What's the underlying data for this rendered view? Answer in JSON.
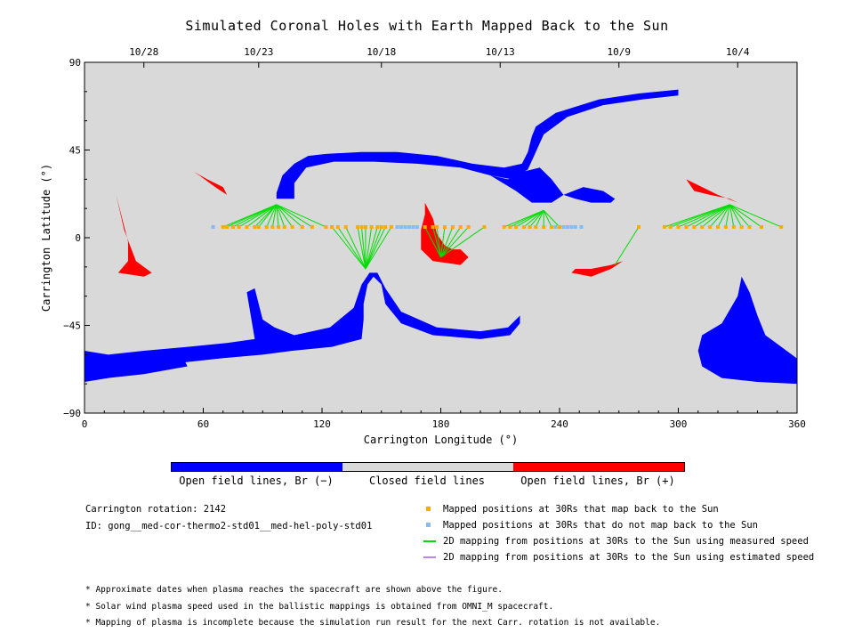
{
  "chart_data": {
    "type": "scatter",
    "title": "Simulated Coronal Holes with Earth Mapped Back to the Sun",
    "xlabel": "Carrington Longitude (°)",
    "ylabel": "Carrington Latitude (°)",
    "xlim": [
      0,
      360
    ],
    "ylim": [
      -90,
      90
    ],
    "xticks": [
      0,
      60,
      120,
      180,
      240,
      300,
      360
    ],
    "yticks": [
      -90,
      -45,
      0,
      45,
      90
    ],
    "xtick_labels": [
      "0",
      "60",
      "120",
      "180",
      "240",
      "300",
      "360"
    ],
    "ytick_labels": [
      "−90",
      "−45",
      "0",
      "45",
      "90"
    ],
    "top_axis": {
      "labels": [
        "10/28",
        "10/23",
        "10/18",
        "10/13",
        "10/9",
        "10/4"
      ],
      "lon": [
        30,
        88,
        150,
        210,
        270,
        330
      ]
    },
    "colors": {
      "open_neg": "#0000ff",
      "open_pos": "#ff0000",
      "closed": "#d9d9d9",
      "mapped": "#ffaa00",
      "unmapped": "#88bbf0",
      "measured": "#00dd00",
      "estimated": "#bb88ee"
    },
    "mapped_lon": [
      70,
      72,
      75,
      78,
      82,
      86,
      88,
      92,
      95,
      98,
      101,
      105,
      110,
      115,
      122,
      125,
      128,
      132,
      138,
      140,
      142,
      145,
      148,
      150,
      152,
      155,
      172,
      176,
      178,
      182,
      186,
      190,
      194,
      202,
      212,
      215,
      218,
      222,
      225,
      228,
      232,
      236,
      240,
      280,
      293,
      296,
      300,
      304,
      308,
      312,
      316,
      320,
      324,
      328,
      332,
      336,
      342,
      352
    ],
    "unmapped_lon": [
      65,
      158,
      160,
      162,
      164,
      166,
      168,
      238,
      240,
      242,
      244,
      246,
      248,
      251
    ],
    "mapped_lat": 5.5,
    "footpoint_groups": [
      {
        "target": [
          97,
          17
        ],
        "sources": [
          70,
          72,
          75,
          78,
          82,
          86,
          88,
          92,
          95,
          98,
          101,
          105,
          110,
          115,
          122
        ]
      },
      {
        "target": [
          142,
          -16
        ],
        "sources": [
          125,
          128,
          132,
          138,
          140,
          142,
          145,
          148,
          150,
          152,
          155
        ]
      },
      {
        "target": [
          180,
          -10
        ],
        "sources": [
          172,
          176,
          178,
          182,
          186,
          190,
          194,
          202
        ]
      },
      {
        "target": [
          232,
          14
        ],
        "sources": [
          212,
          215,
          218,
          222,
          225,
          228,
          232,
          236,
          240
        ]
      },
      {
        "target": [
          268,
          -14
        ],
        "sources": [
          280
        ]
      },
      {
        "target": [
          326,
          17
        ],
        "sources": [
          293,
          296,
          300,
          304,
          308,
          312,
          316,
          320,
          324,
          328,
          332,
          336,
          342,
          352
        ]
      }
    ],
    "open_neg_regions": [
      [
        [
          97,
          23
        ],
        [
          100,
          32
        ],
        [
          106,
          38
        ],
        [
          113,
          42
        ],
        [
          122,
          43
        ],
        [
          140,
          44
        ],
        [
          158,
          44
        ],
        [
          178,
          42
        ],
        [
          196,
          38
        ],
        [
          212,
          36
        ],
        [
          221,
          38
        ],
        [
          224,
          44
        ],
        [
          226,
          52
        ],
        [
          228,
          57
        ],
        [
          238,
          64
        ],
        [
          260,
          71
        ],
        [
          280,
          74
        ],
        [
          300,
          76
        ],
        [
          300,
          73
        ],
        [
          282,
          71
        ],
        [
          262,
          68
        ],
        [
          244,
          62
        ],
        [
          232,
          53
        ],
        [
          228,
          44
        ],
        [
          224,
          35
        ],
        [
          216,
          30
        ],
        [
          205,
          32
        ],
        [
          190,
          36
        ],
        [
          168,
          38
        ],
        [
          146,
          39
        ],
        [
          126,
          39
        ],
        [
          112,
          36
        ],
        [
          106,
          28
        ],
        [
          106,
          20
        ],
        [
          97,
          20
        ]
      ],
      [
        [
          205,
          32
        ],
        [
          214,
          30
        ],
        [
          222,
          34
        ],
        [
          230,
          36
        ],
        [
          236,
          30
        ],
        [
          242,
          22
        ],
        [
          236,
          18
        ],
        [
          226,
          18
        ],
        [
          218,
          24
        ]
      ],
      [
        [
          242,
          22
        ],
        [
          252,
          26
        ],
        [
          262,
          24
        ],
        [
          268,
          20
        ],
        [
          266,
          18
        ],
        [
          256,
          18
        ],
        [
          248,
          20
        ]
      ],
      [
        [
          0,
          -64
        ],
        [
          12,
          -66
        ],
        [
          30,
          -66
        ],
        [
          50,
          -64
        ],
        [
          68,
          -62
        ],
        [
          90,
          -60
        ],
        [
          105,
          -58
        ],
        [
          125,
          -56
        ],
        [
          140,
          -52
        ],
        [
          141,
          -42
        ],
        [
          141,
          -34
        ],
        [
          143,
          -24
        ],
        [
          146,
          -20
        ],
        [
          150,
          -24
        ],
        [
          152,
          -34
        ],
        [
          160,
          -44
        ],
        [
          176,
          -50
        ],
        [
          200,
          -52
        ],
        [
          215,
          -50
        ],
        [
          220,
          -44
        ],
        [
          220,
          -40
        ],
        [
          214,
          -46
        ],
        [
          200,
          -48
        ],
        [
          178,
          -46
        ],
        [
          160,
          -38
        ],
        [
          152,
          -26
        ],
        [
          148,
          -18
        ],
        [
          144,
          -18
        ],
        [
          140,
          -24
        ],
        [
          136,
          -36
        ],
        [
          124,
          -46
        ],
        [
          106,
          -50
        ],
        [
          96,
          -46
        ],
        [
          90,
          -42
        ],
        [
          86,
          -26
        ],
        [
          82,
          -28
        ],
        [
          84,
          -40
        ],
        [
          86,
          -52
        ],
        [
          72,
          -54
        ],
        [
          52,
          -56
        ],
        [
          30,
          -58
        ],
        [
          12,
          -60
        ],
        [
          0,
          -58
        ]
      ],
      [
        [
          312,
          -50
        ],
        [
          322,
          -44
        ],
        [
          330,
          -30
        ],
        [
          332,
          -20
        ],
        [
          336,
          -28
        ],
        [
          340,
          -40
        ],
        [
          344,
          -50
        ],
        [
          360,
          -62
        ],
        [
          360,
          -75
        ],
        [
          340,
          -74
        ],
        [
          322,
          -72
        ],
        [
          312,
          -66
        ],
        [
          310,
          -58
        ]
      ],
      [
        [
          0,
          -62
        ],
        [
          14,
          -64
        ],
        [
          30,
          -64
        ],
        [
          50,
          -62
        ],
        [
          52,
          -66
        ],
        [
          30,
          -70
        ],
        [
          12,
          -72
        ],
        [
          0,
          -74
        ]
      ]
    ],
    "open_pos_regions": [
      [
        [
          17,
          -18
        ],
        [
          22,
          -12
        ],
        [
          22,
          -2
        ],
        [
          18,
          14
        ],
        [
          16,
          22
        ],
        [
          20,
          4
        ],
        [
          26,
          -12
        ],
        [
          34,
          -18
        ],
        [
          30,
          -20
        ]
      ],
      [
        [
          55,
          34
        ],
        [
          62,
          30
        ],
        [
          70,
          26
        ],
        [
          72,
          22
        ],
        [
          66,
          26
        ],
        [
          58,
          32
        ]
      ],
      [
        [
          172,
          18
        ],
        [
          176,
          10
        ],
        [
          178,
          2
        ],
        [
          182,
          -4
        ],
        [
          186,
          -6
        ],
        [
          190,
          -6
        ],
        [
          194,
          -10
        ],
        [
          190,
          -14
        ],
        [
          176,
          -12
        ],
        [
          170,
          -6
        ],
        [
          170,
          4
        ],
        [
          172,
          12
        ]
      ],
      [
        [
          246,
          -18
        ],
        [
          256,
          -20
        ],
        [
          266,
          -16
        ],
        [
          272,
          -12
        ],
        [
          266,
          -14
        ],
        [
          256,
          -16
        ],
        [
          248,
          -16
        ]
      ],
      [
        [
          304,
          30
        ],
        [
          312,
          26
        ],
        [
          320,
          22
        ],
        [
          330,
          18
        ],
        [
          326,
          20
        ],
        [
          316,
          22
        ],
        [
          308,
          24
        ]
      ]
    ]
  },
  "colorbar": {
    "labels": [
      "Open field lines, Br (−)",
      "Closed field lines",
      "Open field lines, Br (+)"
    ]
  },
  "info": {
    "rotation_label": "Carrington rotation: 2142",
    "id_label": "ID: gong__med-cor-thermo2-std01__med-hel-poly-std01"
  },
  "legend": {
    "mapped": "Mapped positions at 30Rs that map back to the Sun",
    "unmapped": "Mapped positions at 30Rs that do not map back to the Sun",
    "measured": "2D mapping from positions at 30Rs to the Sun using measured speed",
    "estimated": "2D mapping from positions at 30Rs to the Sun using estimated speed"
  },
  "notes": [
    "* Approximate dates when plasma reaches the spacecraft are shown above the figure.",
    "* Solar wind plasma speed used in the ballistic mappings is obtained from OMNI_M spacecraft.",
    "* Mapping of plasma is incomplete because the simulation run result for the next Carr. rotation is not available."
  ]
}
